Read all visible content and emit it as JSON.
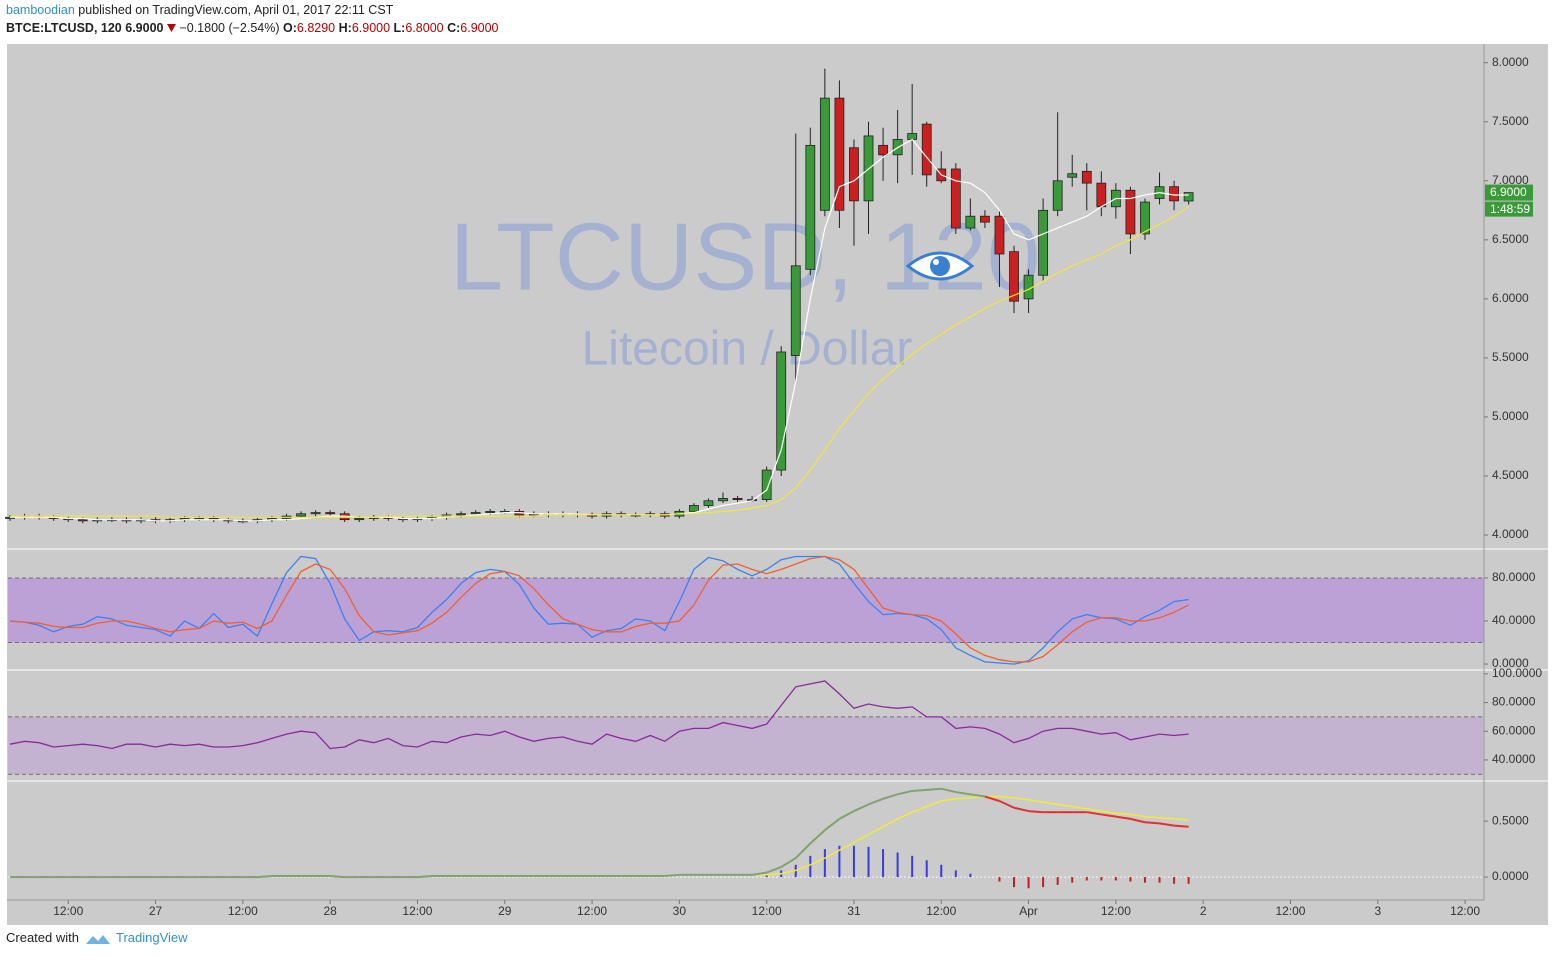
{
  "header": {
    "author": "bamboodian",
    "published": "published on TradingView.com, April 01, 2017 22:11 CST",
    "symbol": "BTCE:LTCUSD, 120",
    "last": "6.9000",
    "change": "−0.1800 (−2.54%)",
    "ohlc": [
      {
        "key": "O:",
        "value": "6.8290"
      },
      {
        "key": "H:",
        "value": "6.9000"
      },
      {
        "key": "L:",
        "value": "6.8000"
      },
      {
        "key": "C:",
        "value": "6.9000"
      }
    ]
  },
  "footer": {
    "created": "Created with",
    "brand": "TradingView"
  },
  "chart_data": [
    {
      "type": "candlestick",
      "title": "LTCUSD, 120",
      "subtitle": "Litecoin / Dollar",
      "up_color": "#3a9a3a",
      "down_color": "#cc2020",
      "open": [
        4.14,
        4.15,
        4.16,
        4.15,
        4.14,
        4.13,
        4.12,
        4.13,
        4.13,
        4.12,
        4.13,
        4.12,
        4.13,
        4.14,
        4.14,
        4.13,
        4.12,
        4.12,
        4.13,
        4.14,
        4.16,
        4.18,
        4.19,
        4.18,
        4.13,
        4.14,
        4.15,
        4.14,
        4.13,
        4.14,
        4.15,
        4.17,
        4.18,
        4.19,
        4.2,
        4.2,
        4.17,
        4.18,
        4.17,
        4.18,
        4.17,
        4.16,
        4.18,
        4.17,
        4.17,
        4.18,
        4.16,
        4.2,
        4.25,
        4.29,
        4.31,
        4.3,
        4.3,
        4.55,
        5.52,
        6.25,
        6.75,
        7.7,
        7.28,
        6.83,
        7.3,
        7.22,
        7.35,
        7.48,
        7.1,
        7.1,
        6.6,
        6.7,
        6.7,
        6.4,
        6.0,
        6.2,
        6.75,
        7.03,
        7.08,
        6.98,
        6.78,
        6.92,
        6.55,
        6.85,
        6.95,
        6.829
      ],
      "high": [
        4.17,
        4.18,
        4.18,
        4.17,
        4.16,
        4.15,
        4.15,
        4.15,
        4.15,
        4.15,
        4.15,
        4.15,
        4.16,
        4.16,
        4.16,
        4.15,
        4.14,
        4.15,
        4.16,
        4.18,
        4.2,
        4.21,
        4.21,
        4.2,
        4.16,
        4.17,
        4.17,
        4.16,
        4.16,
        4.17,
        4.19,
        4.2,
        4.21,
        4.22,
        4.22,
        4.22,
        4.2,
        4.2,
        4.2,
        4.2,
        4.19,
        4.2,
        4.2,
        4.19,
        4.2,
        4.2,
        4.22,
        4.27,
        4.31,
        4.36,
        4.33,
        4.33,
        4.58,
        5.6,
        7.4,
        7.45,
        7.95,
        7.85,
        7.35,
        7.5,
        7.45,
        7.6,
        7.82,
        7.5,
        7.25,
        7.15,
        6.85,
        6.75,
        6.75,
        6.45,
        6.25,
        6.85,
        7.58,
        7.22,
        7.15,
        7.08,
        6.98,
        6.95,
        6.85,
        7.07,
        7.0,
        6.9
      ],
      "low": [
        4.12,
        4.13,
        4.13,
        4.12,
        4.11,
        4.1,
        4.1,
        4.11,
        4.1,
        4.1,
        4.1,
        4.1,
        4.11,
        4.12,
        4.11,
        4.1,
        4.1,
        4.1,
        4.11,
        4.12,
        4.14,
        4.16,
        4.16,
        4.11,
        4.11,
        4.12,
        4.12,
        4.11,
        4.11,
        4.12,
        4.13,
        4.15,
        4.16,
        4.17,
        4.18,
        4.15,
        4.15,
        4.15,
        4.15,
        4.15,
        4.14,
        4.14,
        4.15,
        4.15,
        4.15,
        4.14,
        4.14,
        4.18,
        4.23,
        4.27,
        4.28,
        4.28,
        4.28,
        4.5,
        5.3,
        6.2,
        6.7,
        6.6,
        6.45,
        6.55,
        7.0,
        6.98,
        7.05,
        6.95,
        6.98,
        6.55,
        6.58,
        6.6,
        6.1,
        5.88,
        5.88,
        6.15,
        6.7,
        6.95,
        6.75,
        6.7,
        6.68,
        6.38,
        6.5,
        6.8,
        6.75,
        6.8
      ],
      "close": [
        4.15,
        4.16,
        4.15,
        4.14,
        4.13,
        4.12,
        4.13,
        4.13,
        4.12,
        4.13,
        4.12,
        4.13,
        4.14,
        4.14,
        4.13,
        4.12,
        4.12,
        4.13,
        4.14,
        4.16,
        4.18,
        4.19,
        4.18,
        4.13,
        4.14,
        4.15,
        4.14,
        4.13,
        4.14,
        4.15,
        4.17,
        4.18,
        4.19,
        4.2,
        4.2,
        4.17,
        4.18,
        4.17,
        4.18,
        4.17,
        4.16,
        4.18,
        4.17,
        4.17,
        4.18,
        4.16,
        4.2,
        4.25,
        4.29,
        4.31,
        4.3,
        4.3,
        4.55,
        5.55,
        6.28,
        7.3,
        7.7,
        6.75,
        6.83,
        7.38,
        7.22,
        7.35,
        7.4,
        7.05,
        7.0,
        6.6,
        6.7,
        6.65,
        6.38,
        5.98,
        6.2,
        6.75,
        7.0,
        7.06,
        6.98,
        6.78,
        6.92,
        6.55,
        6.82,
        6.95,
        6.83,
        6.9
      ],
      "overlays": [
        {
          "color": "#ffffff",
          "values": [
            4.15,
            4.15,
            4.15,
            4.15,
            4.14,
            4.14,
            4.13,
            4.13,
            4.13,
            4.13,
            4.12,
            4.12,
            4.13,
            4.13,
            4.13,
            4.13,
            4.12,
            4.12,
            4.13,
            4.13,
            4.14,
            4.15,
            4.16,
            4.16,
            4.15,
            4.15,
            4.15,
            4.14,
            4.14,
            4.14,
            4.15,
            4.16,
            4.17,
            4.18,
            4.19,
            4.19,
            4.18,
            4.18,
            4.18,
            4.18,
            4.17,
            4.17,
            4.17,
            4.17,
            4.17,
            4.17,
            4.18,
            4.19,
            4.22,
            4.25,
            4.27,
            4.29,
            4.38,
            4.72,
            5.3,
            6.0,
            6.6,
            6.95,
            7.0,
            7.1,
            7.2,
            7.28,
            7.35,
            7.2,
            7.05,
            7.0,
            6.98,
            6.9,
            6.75,
            6.55,
            6.5,
            6.55,
            6.6,
            6.65,
            6.7,
            6.78,
            6.85,
            6.85,
            6.88,
            6.9,
            6.88,
            6.88
          ]
        },
        {
          "color": "#f2e640",
          "values": [
            4.16,
            4.16,
            4.16,
            4.16,
            4.16,
            4.16,
            4.16,
            4.16,
            4.16,
            4.16,
            4.16,
            4.15,
            4.15,
            4.15,
            4.15,
            4.15,
            4.15,
            4.15,
            4.15,
            4.15,
            4.15,
            4.15,
            4.15,
            4.15,
            4.15,
            4.15,
            4.16,
            4.16,
            4.16,
            4.16,
            4.16,
            4.16,
            4.16,
            4.16,
            4.16,
            4.16,
            4.16,
            4.17,
            4.17,
            4.17,
            4.17,
            4.17,
            4.17,
            4.17,
            4.17,
            4.17,
            4.18,
            4.18,
            4.19,
            4.2,
            4.21,
            4.23,
            4.25,
            4.3,
            4.4,
            4.55,
            4.72,
            4.9,
            5.05,
            5.2,
            5.32,
            5.43,
            5.53,
            5.62,
            5.7,
            5.78,
            5.85,
            5.92,
            5.98,
            6.03,
            6.08,
            6.15,
            6.22,
            6.28,
            6.33,
            6.38,
            6.45,
            6.5,
            6.57,
            6.63,
            6.7,
            6.78
          ]
        }
      ],
      "price_tag": "6.9000",
      "countdown": "1:48:59",
      "xlim": [
        -0.14,
        101.3
      ],
      "xticks": [
        {
          "value": 4,
          "label": "12:00"
        },
        {
          "value": 10,
          "label": "27"
        },
        {
          "value": 16,
          "label": "12:00"
        },
        {
          "value": 22,
          "label": "28"
        },
        {
          "value": 28,
          "label": "12:00"
        },
        {
          "value": 34,
          "label": "29"
        },
        {
          "value": 40,
          "label": "12:00"
        },
        {
          "value": 46,
          "label": "30"
        },
        {
          "value": 52,
          "label": "12:00"
        },
        {
          "value": 58,
          "label": "31"
        },
        {
          "value": 64,
          "label": "12:00"
        },
        {
          "value": 70,
          "label": "Apr"
        },
        {
          "value": 76,
          "label": "12:00"
        },
        {
          "value": 82,
          "label": "2"
        },
        {
          "value": 88,
          "label": "12:00"
        },
        {
          "value": 94,
          "label": "3"
        },
        {
          "value": 100,
          "label": "12:00"
        }
      ],
      "ylim": [
        3.89,
        8.15
      ],
      "yticks": [
        {
          "value": 4,
          "label": "4.0000"
        },
        {
          "value": 4.5,
          "label": "4.5000"
        },
        {
          "value": 5,
          "label": "5.0000"
        },
        {
          "value": 5.5,
          "label": "5.5000"
        },
        {
          "value": 6,
          "label": "6.0000"
        },
        {
          "value": 6.5,
          "label": "6.5000"
        },
        {
          "value": 7,
          "label": "7.0000"
        },
        {
          "value": 7.5,
          "label": "7.5000"
        },
        {
          "value": 8,
          "label": "8.0000"
        }
      ]
    },
    {
      "type": "line",
      "band": [
        20,
        80
      ],
      "band_color": "rgba(170,110,230,0.45)",
      "series": [
        {
          "color": "#3b82f0",
          "values": [
            40,
            39,
            36,
            30,
            35,
            37,
            44,
            42,
            36,
            34,
            32,
            26,
            40,
            33,
            47,
            34,
            37,
            26,
            56,
            85,
            100,
            98,
            75,
            42,
            22,
            30,
            31,
            30,
            34,
            48,
            60,
            75,
            85,
            88,
            86,
            74,
            52,
            37,
            38,
            37,
            25,
            31,
            33,
            42,
            40,
            31,
            58,
            88,
            99,
            96,
            88,
            82,
            88,
            97,
            100,
            100,
            100,
            93,
            75,
            58,
            46,
            47,
            46,
            42,
            32,
            15,
            8,
            2,
            1,
            0,
            3,
            15,
            30,
            42,
            46,
            43,
            42,
            36,
            44,
            50,
            58,
            60
          ]
        },
        {
          "color": "#f06030",
          "values": [
            40,
            39,
            38,
            35,
            34,
            34,
            38,
            40,
            40,
            37,
            33,
            30,
            32,
            33,
            40,
            38,
            39,
            33,
            40,
            64,
            86,
            93,
            88,
            70,
            45,
            30,
            27,
            29,
            31,
            38,
            48,
            62,
            75,
            84,
            86,
            82,
            70,
            55,
            42,
            37,
            32,
            30,
            30,
            35,
            38,
            38,
            40,
            55,
            78,
            92,
            93,
            88,
            84,
            88,
            93,
            98,
            100,
            97,
            88,
            70,
            52,
            48,
            46,
            45,
            40,
            28,
            15,
            8,
            4,
            2,
            2,
            7,
            18,
            30,
            39,
            43,
            43,
            40,
            40,
            43,
            48,
            55
          ]
        }
      ],
      "ylim": [
        -4.6,
        106
      ],
      "yticks": [
        {
          "value": 0,
          "label": "0.0000"
        },
        {
          "value": 40,
          "label": "40.0000"
        },
        {
          "value": 80,
          "label": "80.0000"
        }
      ]
    },
    {
      "type": "line",
      "band": [
        30,
        70
      ],
      "band_color": "rgba(190,160,215,0.55)",
      "series": [
        {
          "color": "#8a2a9a",
          "values": [
            51,
            53,
            52,
            49,
            50,
            51,
            50,
            48,
            51,
            51,
            49,
            51,
            50,
            51,
            49,
            49,
            50,
            52,
            55,
            58,
            60,
            59,
            48,
            49,
            54,
            52,
            55,
            50,
            49,
            53,
            52,
            56,
            58,
            57,
            60,
            56,
            53,
            55,
            56,
            53,
            51,
            58,
            55,
            53,
            57,
            53,
            60,
            62,
            62,
            66,
            64,
            62,
            65,
            78,
            91,
            93,
            95,
            86,
            76,
            79,
            77,
            76,
            77,
            70,
            70,
            62,
            63,
            62,
            58,
            52,
            55,
            60,
            62,
            62,
            60,
            58,
            59,
            54,
            56,
            58,
            57,
            58
          ]
        }
      ],
      "ylim": [
        27.4,
        102
      ],
      "yticks": [
        {
          "value": 40,
          "label": "40.0000"
        },
        {
          "value": 60,
          "label": "60.0000"
        },
        {
          "value": 80,
          "label": "80.0000"
        },
        {
          "value": 100,
          "label": "100.0000"
        }
      ]
    },
    {
      "type": "macd",
      "colors": {
        "macd_up": "#7fa36e",
        "macd_down": "#e03030",
        "signal": "#f2ea3a",
        "hist_up": "#3a3ae0",
        "hist_down": "#c02020",
        "zero": "#ffffff"
      },
      "macd": [
        0,
        0,
        0,
        0,
        0,
        0,
        0,
        0,
        0,
        0,
        0,
        0,
        0,
        0,
        0,
        0,
        0,
        0,
        0.01,
        0.01,
        0.01,
        0.01,
        0.01,
        0,
        0,
        0,
        0,
        0,
        0,
        0.01,
        0.01,
        0.01,
        0.01,
        0.01,
        0.01,
        0.01,
        0.01,
        0.01,
        0.01,
        0.01,
        0.01,
        0.01,
        0.01,
        0.01,
        0.01,
        0.01,
        0.02,
        0.02,
        0.02,
        0.02,
        0.02,
        0.02,
        0.04,
        0.09,
        0.17,
        0.3,
        0.42,
        0.52,
        0.59,
        0.65,
        0.7,
        0.74,
        0.77,
        0.78,
        0.79,
        0.76,
        0.74,
        0.72,
        0.68,
        0.62,
        0.59,
        0.58,
        0.58,
        0.58,
        0.58,
        0.56,
        0.54,
        0.52,
        0.49,
        0.48,
        0.46,
        0.45
      ],
      "signal": [
        0,
        0,
        0,
        0,
        0,
        0,
        0,
        0,
        0,
        0,
        0,
        0,
        0,
        0,
        0,
        0,
        0,
        0,
        0.01,
        0.01,
        0.01,
        0.01,
        0.01,
        0,
        0,
        0,
        0,
        0,
        0,
        0.01,
        0.01,
        0.01,
        0.01,
        0.01,
        0.01,
        0.01,
        0.01,
        0.01,
        0.01,
        0.01,
        0.01,
        0.01,
        0.01,
        0.01,
        0.01,
        0.01,
        0.02,
        0.02,
        0.02,
        0.02,
        0.02,
        0.02,
        0.02,
        0.03,
        0.06,
        0.11,
        0.17,
        0.24,
        0.31,
        0.38,
        0.45,
        0.52,
        0.58,
        0.63,
        0.68,
        0.7,
        0.71,
        0.72,
        0.72,
        0.71,
        0.69,
        0.67,
        0.65,
        0.63,
        0.61,
        0.59,
        0.57,
        0.56,
        0.54,
        0.53,
        0.52,
        0.51
      ],
      "histogram": [
        0,
        0,
        0,
        0,
        0,
        0,
        0,
        0,
        0,
        0,
        0,
        0,
        0,
        0,
        0,
        0,
        0,
        0,
        0,
        0,
        0,
        0,
        0,
        0,
        0,
        0,
        0,
        0,
        0,
        0,
        0,
        0,
        0,
        0,
        0,
        0,
        0,
        0,
        0,
        0,
        0,
        0,
        0,
        0,
        0,
        0,
        0,
        0,
        0,
        0,
        0,
        0,
        0.02,
        0.06,
        0.11,
        0.19,
        0.25,
        0.28,
        0.28,
        0.27,
        0.25,
        0.22,
        0.19,
        0.15,
        0.11,
        0.06,
        0.03,
        0,
        -0.04,
        -0.09,
        -0.1,
        -0.09,
        -0.07,
        -0.05,
        -0.03,
        -0.03,
        -0.03,
        -0.04,
        -0.05,
        -0.05,
        -0.06,
        -0.06
      ],
      "ylim": [
        -0.205,
        0.85
      ],
      "yticks": [
        {
          "value": 0,
          "label": "0.0000"
        },
        {
          "value": 0.5,
          "label": "0.5000"
        }
      ]
    }
  ]
}
